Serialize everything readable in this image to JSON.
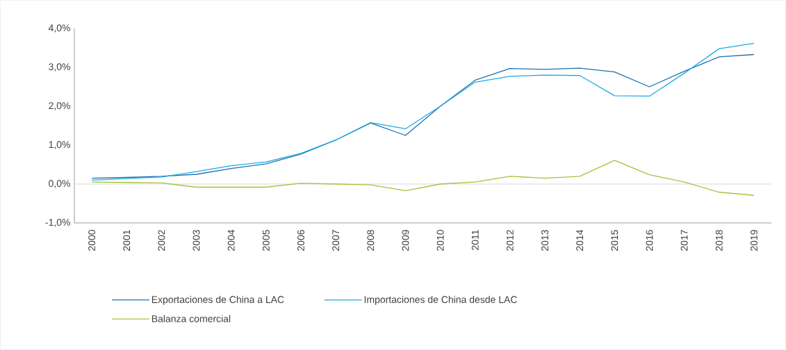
{
  "chart_data": {
    "type": "line",
    "categories": [
      "2000",
      "2001",
      "2002",
      "2003",
      "2004",
      "2005",
      "2006",
      "2007",
      "2008",
      "2009",
      "2010",
      "2011",
      "2012",
      "2013",
      "2014",
      "2015",
      "2016",
      "2017",
      "2018",
      "2019"
    ],
    "series": [
      {
        "name": "Exportaciones de China a LAC",
        "color": "#1f6fae",
        "values": [
          0.15,
          0.17,
          0.2,
          0.25,
          0.4,
          0.52,
          0.77,
          1.13,
          1.57,
          1.25,
          2.0,
          2.67,
          2.97,
          2.95,
          2.98,
          2.88,
          2.5,
          2.9,
          3.27,
          3.33
        ]
      },
      {
        "name": "Importaciones de China desde LAC",
        "color": "#1aabe2",
        "values": [
          0.1,
          0.14,
          0.18,
          0.32,
          0.47,
          0.57,
          0.79,
          1.13,
          1.58,
          1.42,
          2.0,
          2.62,
          2.77,
          2.8,
          2.79,
          2.27,
          2.26,
          2.85,
          3.48,
          3.62
        ]
      },
      {
        "name": "Balanza comercial",
        "color": "#a5c23a",
        "values": [
          0.05,
          0.04,
          0.03,
          -0.08,
          -0.08,
          -0.08,
          0.02,
          0.0,
          -0.02,
          -0.17,
          0.0,
          0.05,
          0.2,
          0.15,
          0.2,
          0.61,
          0.24,
          0.05,
          -0.21,
          -0.29
        ]
      }
    ],
    "ylim": [
      -1.0,
      4.0
    ],
    "yticks": [
      {
        "value": -1.0,
        "label": "-1,0%"
      },
      {
        "value": 0.0,
        "label": "0,0%"
      },
      {
        "value": 1.0,
        "label": "1,0%"
      },
      {
        "value": 2.0,
        "label": "2,0%"
      },
      {
        "value": 3.0,
        "label": "3,0%"
      },
      {
        "value": 4.0,
        "label": "4,0%"
      }
    ],
    "ref_lines": [
      {
        "axis": "y",
        "value": 0.0,
        "color": "#d9d9d9"
      }
    ],
    "legend": "bottom"
  }
}
